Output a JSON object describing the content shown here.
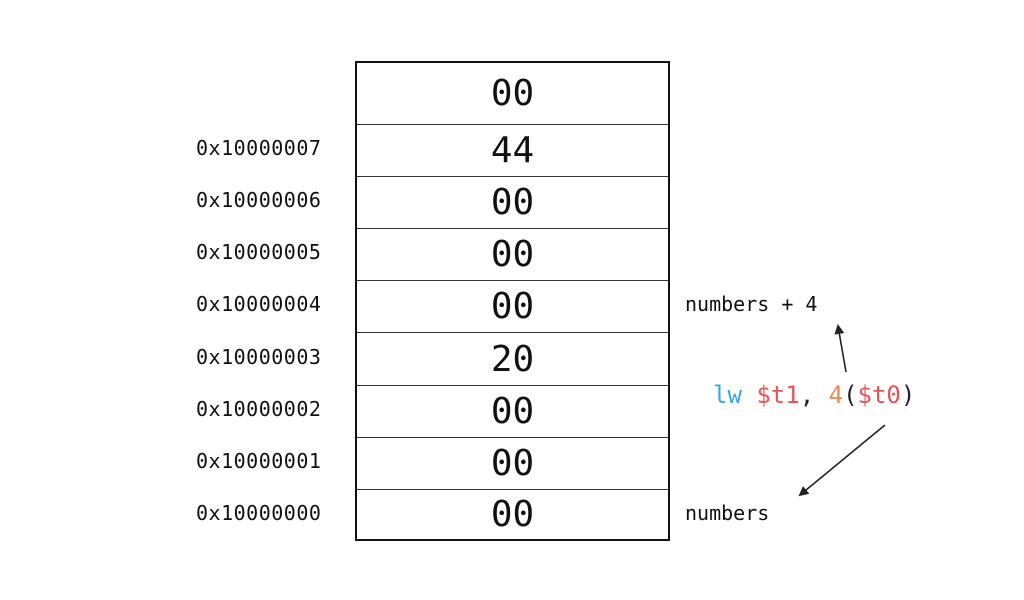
{
  "memory": {
    "cells": [
      {
        "value": "00",
        "address": ""
      },
      {
        "value": "44",
        "address": "0x10000007"
      },
      {
        "value": "00",
        "address": "0x10000006"
      },
      {
        "value": "00",
        "address": "0x10000005"
      },
      {
        "value": "00",
        "address": "0x10000004"
      },
      {
        "value": "20",
        "address": "0x10000003"
      },
      {
        "value": "00",
        "address": "0x10000002"
      },
      {
        "value": "00",
        "address": "0x10000001"
      },
      {
        "value": "00",
        "address": "0x10000000"
      }
    ]
  },
  "annotations": {
    "numbers_plus_4": "numbers + 4",
    "numbers": "numbers"
  },
  "instruction": {
    "opcode": "lw",
    "dest_reg": "$t1",
    "comma": ",",
    "offset": "4",
    "open_paren": "(",
    "base_reg": "$t0",
    "close_paren": ")"
  },
  "colors": {
    "opcode": "#3aa6e8",
    "register": "#e85454",
    "offset": "#ef8a4c"
  }
}
